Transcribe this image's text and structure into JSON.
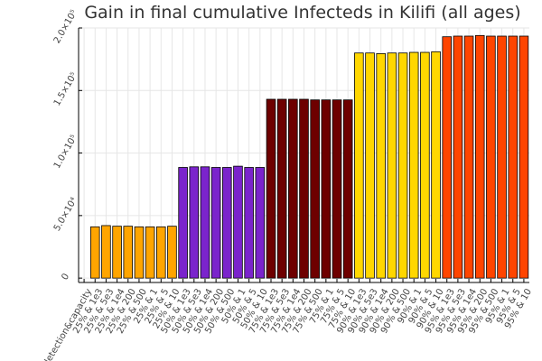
{
  "chart_data": {
    "type": "bar",
    "title": "Gain in final cumulative Infecteds in Kilifi (all ages)",
    "xlabel": "",
    "ylabel": "",
    "ylim": [
      -3500,
      200000
    ],
    "y_ticks": [
      {
        "value": 0,
        "label": "0"
      },
      {
        "value": 50000,
        "label": "5.0×10⁴"
      },
      {
        "value": 100000,
        "label": "1.0×10⁵"
      },
      {
        "value": 150000,
        "label": "1.5×10⁵"
      },
      {
        "value": 200000,
        "label": "2.0×10⁵"
      }
    ],
    "grid": true,
    "legend": "none",
    "categories": [
      "detection&capacity",
      "25% & 1e3",
      "25% & 5e3",
      "25% & 1e4",
      "25% & 200",
      "25% & 500",
      "25% & 1",
      "25% & 5",
      "25% & 10",
      "50% & 1e3",
      "50% & 5e3",
      "50% & 1e4",
      "50% & 200",
      "50% & 500",
      "50% & 1",
      "50% & 5",
      "50% & 10",
      "75% & 1e3",
      "75% & 5e3",
      "75% & 1e4",
      "75% & 200",
      "75% & 500",
      "75% & 1",
      "75% & 5",
      "75% & 10",
      "90% & 1e3",
      "90% & 5e3",
      "90% & 1e4",
      "90% & 200",
      "90% & 500",
      "90% & 1",
      "90% & 5",
      "90% & 10",
      "95% & 1e3",
      "95% & 5e3",
      "95% & 1e4",
      "95% & 200",
      "95% & 500",
      "95% & 1",
      "95% & 5",
      "95% & 10"
    ],
    "values": [
      null,
      41000,
      42000,
      41500,
      41500,
      41000,
      41000,
      41000,
      41500,
      88500,
      89000,
      89000,
      88500,
      88500,
      89500,
      88500,
      88500,
      143000,
      143000,
      143000,
      143000,
      142500,
      142500,
      142500,
      142500,
      180000,
      180000,
      179500,
      180000,
      180000,
      180500,
      180500,
      181000,
      193000,
      193500,
      193500,
      194000,
      193500,
      193500,
      193500,
      193500
    ],
    "bar_colors": [
      "#ffffff",
      "#ffa500",
      "#ffa500",
      "#ffa500",
      "#ffa500",
      "#ffa500",
      "#ffa500",
      "#ffa500",
      "#ffa500",
      "#7b24cc",
      "#7b24cc",
      "#7b24cc",
      "#7b24cc",
      "#7b24cc",
      "#7b24cc",
      "#7b24cc",
      "#7b24cc",
      "#6e0000",
      "#6e0000",
      "#6e0000",
      "#6e0000",
      "#6e0000",
      "#6e0000",
      "#6e0000",
      "#6e0000",
      "#ffd700",
      "#ffd700",
      "#ffd700",
      "#ffd700",
      "#ffd700",
      "#ffd700",
      "#ffd700",
      "#ffd700",
      "#ff4500",
      "#ff4500",
      "#ff4500",
      "#ff4500",
      "#ff4500",
      "#ff4500",
      "#ff4500",
      "#ff4500"
    ]
  }
}
